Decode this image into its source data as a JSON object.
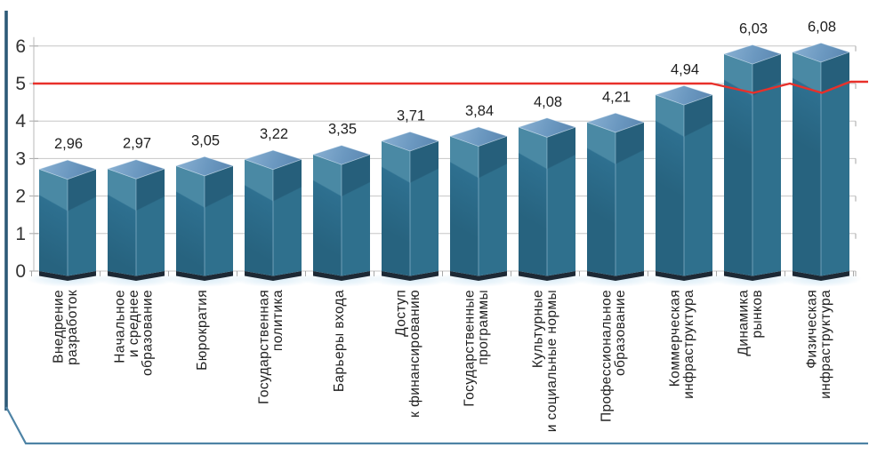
{
  "figure": {
    "background": "#ffffff",
    "frame": {
      "left_bar_color": "#2D5A78",
      "border_color": "#4E83A5"
    }
  },
  "chart_data": {
    "type": "bar",
    "variant": "3d-column",
    "title": "",
    "legend": false,
    "grid": true,
    "categories": [
      "Внедрение разработок",
      "Начальное и среднее образование",
      "Бюрократия",
      "Государственная политика",
      "Барьеры входа",
      "Доступ к финансированию",
      "Государственные программы",
      "Культурные и социальные нормы",
      "Профессиональное образование",
      "Коммерческая инфраструктура",
      "Динамика рынков",
      "Физическая инфраструктура"
    ],
    "category_label_lines": [
      [
        "Внедрение",
        "разработок"
      ],
      [
        "Начальное",
        "и среднее",
        "образование"
      ],
      [
        "Бюрократия"
      ],
      [
        "Государственная",
        "политика"
      ],
      [
        "Барьеры входа"
      ],
      [
        "Доступ",
        "к финансированию"
      ],
      [
        "Государственные",
        "программы"
      ],
      [
        "Культурные",
        "и социальные нормы"
      ],
      [
        "Профессиональное",
        "образование"
      ],
      [
        "Коммерческая",
        "инфраструктура"
      ],
      [
        "Динамика",
        "рынков"
      ],
      [
        "Физическая",
        "инфраструктура"
      ]
    ],
    "values": [
      2.96,
      2.97,
      3.05,
      3.22,
      3.35,
      3.71,
      3.84,
      4.08,
      4.21,
      4.94,
      6.03,
      6.08
    ],
    "value_labels": [
      "2,96",
      "2,97",
      "3,05",
      "3,22",
      "3,35",
      "3,71",
      "3,84",
      "4,08",
      "4,21",
      "4,94",
      "6,03",
      "6,08"
    ],
    "xlabel": "",
    "ylabel": "",
    "ylim": [
      0,
      6
    ],
    "y_ticks": [
      0,
      1,
      2,
      3,
      4,
      5,
      6
    ],
    "reference_line": {
      "value": 5,
      "color": "#E8302A"
    },
    "colors": {
      "front_light": "#4A89A4",
      "front_dark": "#2E7090",
      "front_darker": "#27637F",
      "side_dark": "#265F7B",
      "side_light": "#2F708D",
      "top_light": "#85ADD0",
      "top_mid": "#6B98C0",
      "top_dark": "#5D89B3",
      "base_slab": "#1D2935",
      "glow": "#D6EAF6",
      "gridline": "#C6C6C6",
      "axis_line": "#B8B8B8",
      "tick": "#A6A6A6",
      "axis_text": "#333333",
      "value_text": "#1F1F1F",
      "category_text": "#1F1F1F",
      "edge_highlight": "rgba(190,220,240,0.45)"
    }
  }
}
